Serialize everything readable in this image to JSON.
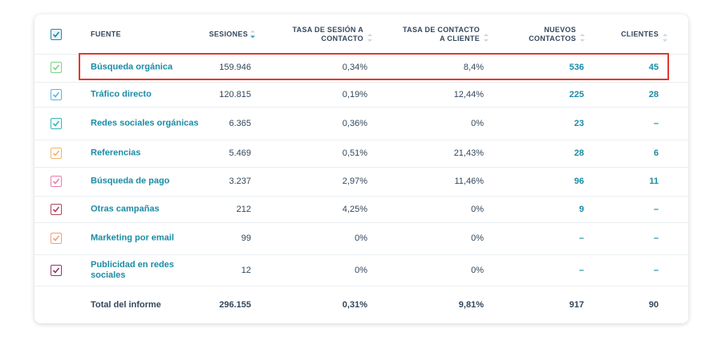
{
  "headers": {
    "source": "FUENTE",
    "sessions": "SESIONES",
    "session_rate": "TASA DE SESIÓN A CONTACTO",
    "contact_rate": "TASA DE CONTACTO A CLIENTE",
    "new_contacts": "NUEVOS CONTACTOS",
    "customers": "CLIENTES"
  },
  "rows": [
    {
      "source": "Búsqueda orgánica",
      "sessions": "159.946",
      "session_rate": "0,34%",
      "contact_rate": "8,4%",
      "new_contacts": "536",
      "customers": "45",
      "check_color": "#7fd18b"
    },
    {
      "source": "Tráfico directo",
      "sessions": "120.815",
      "session_rate": "0,19%",
      "contact_rate": "12,44%",
      "new_contacts": "225",
      "customers": "28",
      "check_color": "#5fb3e6"
    },
    {
      "source": "Redes sociales orgánicas",
      "sessions": "6.365",
      "session_rate": "0,36%",
      "contact_rate": "0%",
      "new_contacts": "23",
      "customers": "–",
      "check_color": "#34b8b8"
    },
    {
      "source": "Referencias",
      "sessions": "5.469",
      "session_rate": "0,51%",
      "contact_rate": "21,43%",
      "new_contacts": "28",
      "customers": "6",
      "check_color": "#f5b46b"
    },
    {
      "source": "Búsqueda de pago",
      "sessions": "3.237",
      "session_rate": "2,97%",
      "contact_rate": "11,46%",
      "new_contacts": "96",
      "customers": "11",
      "check_color": "#e87fa8"
    },
    {
      "source": "Otras campañas",
      "sessions": "212",
      "session_rate": "4,25%",
      "contact_rate": "0%",
      "new_contacts": "9",
      "customers": "–",
      "check_color": "#b0455a"
    },
    {
      "source": "Marketing por email",
      "sessions": "99",
      "session_rate": "0%",
      "contact_rate": "0%",
      "new_contacts": "–",
      "customers": "–",
      "check_color": "#f2a07a"
    },
    {
      "source": "Publicidad en redes sociales",
      "sessions": "12",
      "session_rate": "0%",
      "contact_rate": "0%",
      "new_contacts": "–",
      "customers": "–",
      "check_color": "#8a3a6a"
    }
  ],
  "total": {
    "label": "Total del informe",
    "sessions": "296.155",
    "session_rate": "0,31%",
    "contact_rate": "9,81%",
    "new_contacts": "917",
    "customers": "90"
  },
  "header_check_color": "#1a8ca6",
  "highlight_color": "#e3382f"
}
